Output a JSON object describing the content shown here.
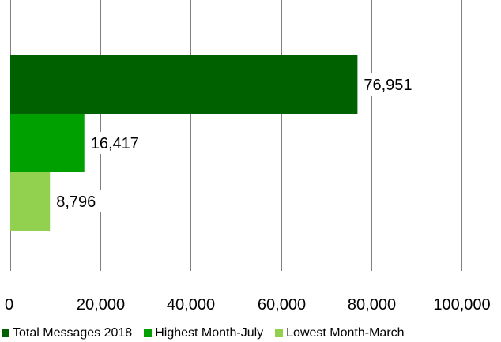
{
  "chart_data": {
    "type": "bar",
    "orientation": "horizontal",
    "categories": [
      "Total Messages 2018",
      "Highest Month-July",
      "Lowest Month-March"
    ],
    "values": [
      76951,
      16417,
      8796
    ],
    "data_labels": [
      "76,951",
      "16,417",
      "8,796"
    ],
    "colors": [
      "#006100",
      "#00A000",
      "#92D050"
    ],
    "xlim": [
      0,
      100000
    ],
    "x_ticks": [
      0,
      20000,
      40000,
      60000,
      80000,
      100000
    ],
    "x_tick_labels": [
      "0",
      "20,000",
      "40,000",
      "60,000",
      "80,000",
      "100,000"
    ],
    "grid": true,
    "legend": {
      "position": "bottom",
      "entries": [
        "Total Messages 2018",
        "Highest Month-July",
        "Lowest Month-March"
      ]
    }
  }
}
